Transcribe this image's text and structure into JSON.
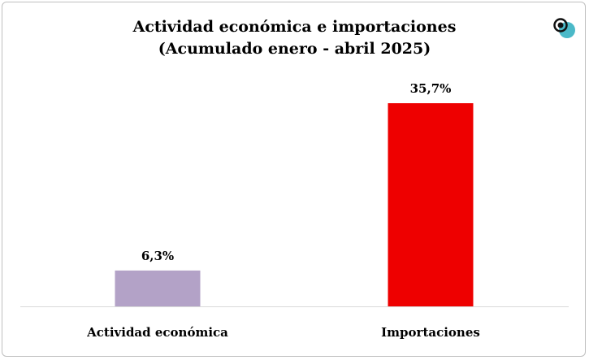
{
  "chart_data": {
    "type": "bar",
    "title": "Actividad económica e importaciones",
    "subtitle": "(Acumulado enero - abril 2025)",
    "categories": [
      "Actividad económica",
      "Importaciones"
    ],
    "values": [
      6.3,
      35.7
    ],
    "labels": [
      "6,3%",
      "35,7%"
    ],
    "colors": [
      "#b3a2c7",
      "#ee0000"
    ],
    "ylim": [
      0,
      36
    ],
    "xlabel": "",
    "ylabel": "",
    "grid": false
  }
}
